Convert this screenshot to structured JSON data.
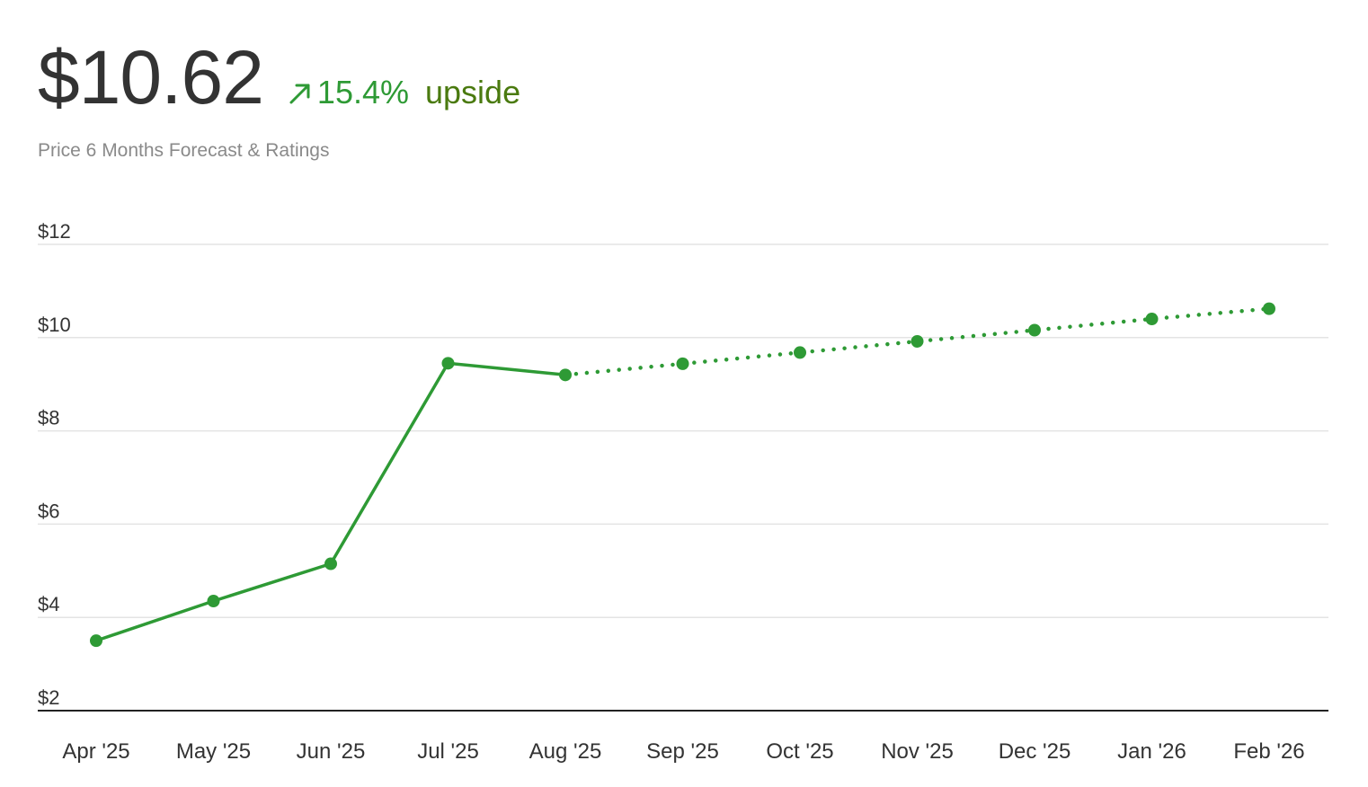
{
  "header": {
    "price": "$10.62",
    "change": "15.4%",
    "change_label": "upside",
    "subtitle": "Price 6 Months Forecast & Ratings",
    "arrow_icon": "arrow-up-right-icon"
  },
  "colors": {
    "line": "#2e9a35",
    "price_text": "#333333",
    "change_text": "#2e9a35",
    "upside_text": "#4a7a0f",
    "subtitle_text": "#8a8a8a",
    "grid": "#e4e4e4",
    "axis": "#222222"
  },
  "chart_data": {
    "type": "line",
    "categories": [
      "Apr '25",
      "May '25",
      "Jun '25",
      "Jul '25",
      "Aug '25",
      "Sep '25",
      "Oct '25",
      "Nov '25",
      "Dec '25",
      "Jan '26",
      "Feb '26"
    ],
    "series": [
      {
        "style": "solid",
        "values": [
          3.5,
          4.35,
          5.15,
          9.45,
          9.2,
          null,
          null,
          null,
          null,
          null,
          null
        ]
      },
      {
        "style": "dotted",
        "values": [
          null,
          null,
          null,
          null,
          9.2,
          9.44,
          9.68,
          9.92,
          10.16,
          10.4,
          10.62
        ]
      }
    ],
    "y_ticks": [
      2,
      4,
      6,
      8,
      10,
      12
    ],
    "y_tick_labels": [
      "$2",
      "$4",
      "$6",
      "$8",
      "$10",
      "$12"
    ],
    "ylim": [
      2,
      12
    ],
    "grid": true,
    "title": "",
    "xlabel": "",
    "ylabel": ""
  }
}
